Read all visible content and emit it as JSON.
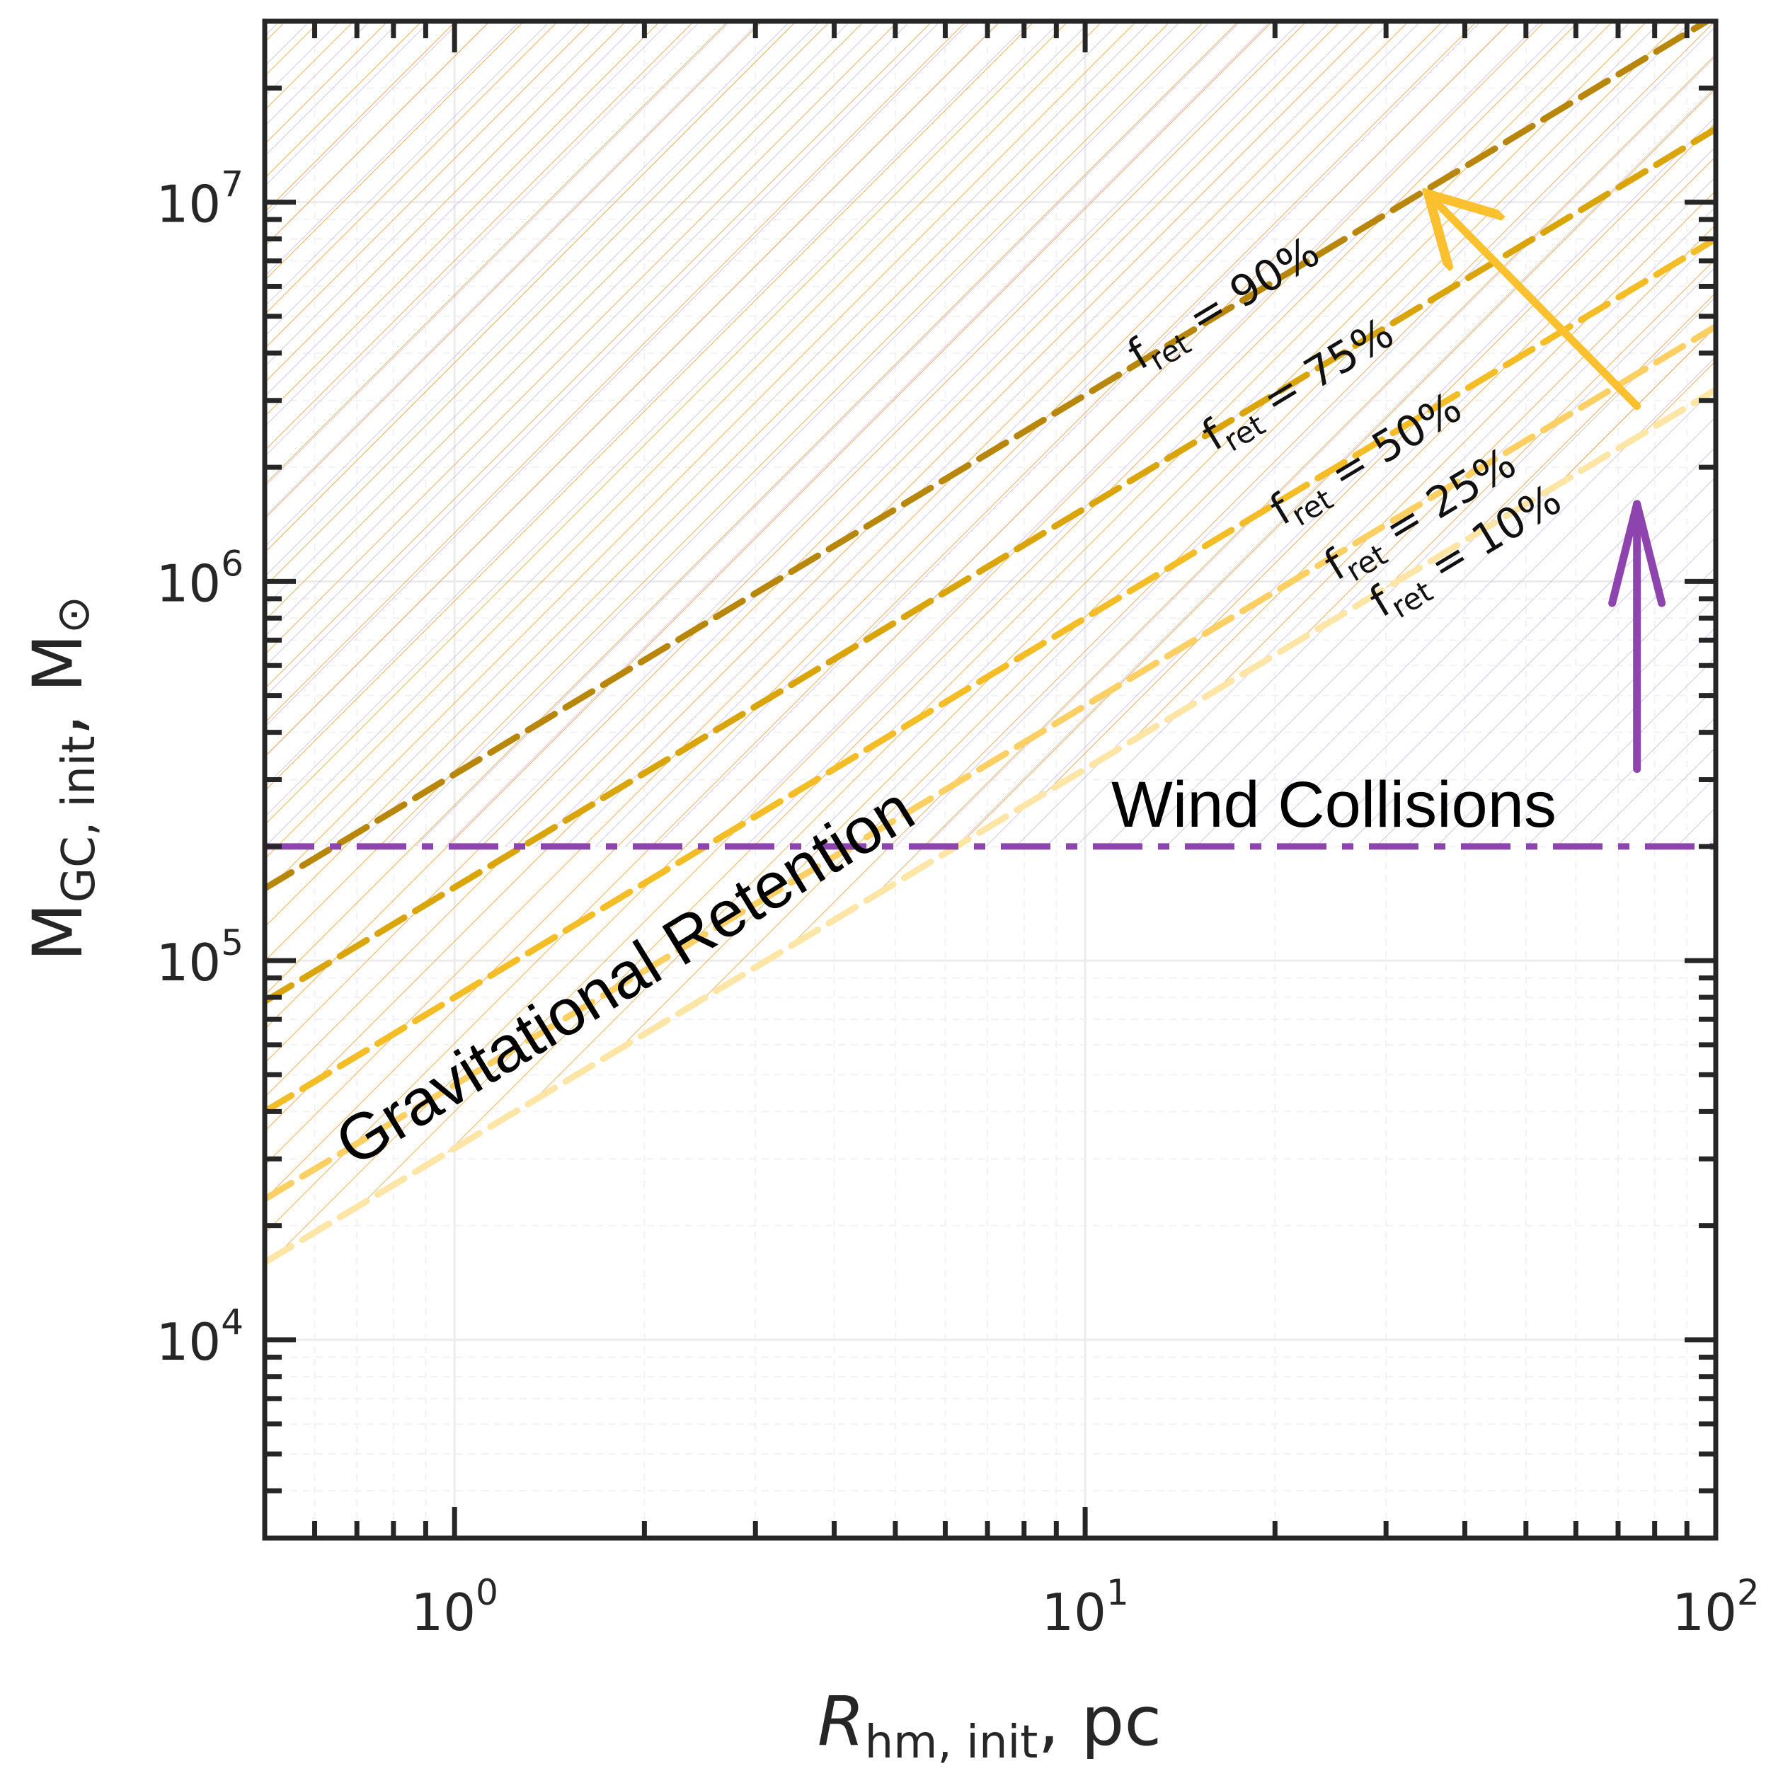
{
  "chart_data": {
    "type": "line",
    "xscale": "log",
    "yscale": "log",
    "xlim": [
      0.5,
      100
    ],
    "ylim": [
      3000,
      30000000
    ],
    "xlabel": {
      "main": "R",
      "sub": "hm, init",
      "suffix": ", pc"
    },
    "ylabel": {
      "main": "M",
      "sub": "GC, init",
      "suffix": ", M",
      "symbol": "⊙"
    },
    "x_ticks": [
      {
        "value": 1,
        "base": "10",
        "exp": "0"
      },
      {
        "value": 10,
        "base": "10",
        "exp": "1"
      },
      {
        "value": 100,
        "base": "10",
        "exp": "2"
      }
    ],
    "y_ticks": [
      {
        "value": 10000,
        "base": "10",
        "exp": "4"
      },
      {
        "value": 100000,
        "base": "10",
        "exp": "5"
      },
      {
        "value": 1000000,
        "base": "10",
        "exp": "6"
      },
      {
        "value": 10000000,
        "base": "10",
        "exp": "7"
      }
    ],
    "series": [
      {
        "name": "f_ret = 90%",
        "label_main": "f",
        "label_sub": "ret",
        "label_rest": " = 90%",
        "color": "#b8860b",
        "slope": 1,
        "points": [
          [
            0.5,
            155000
          ],
          [
            100,
            31000000
          ]
        ],
        "label_x": 12.2,
        "label_at": 3600000
      },
      {
        "name": "f_ret = 75%",
        "label_main": "f",
        "label_sub": "ret",
        "label_rest": " = 75%",
        "color": "#daa50b",
        "slope": 1,
        "points": [
          [
            0.5,
            78000
          ],
          [
            100,
            15600000
          ]
        ],
        "label_x": 16.0,
        "label_at": 2200000
      },
      {
        "name": "f_ret = 50%",
        "label_main": "f",
        "label_sub": "ret",
        "label_rest": " = 50%",
        "color": "#f5bd25",
        "slope": 1,
        "points": [
          [
            0.5,
            40000
          ],
          [
            100,
            8000000
          ]
        ],
        "label_x": 20.5,
        "label_at": 1400000
      },
      {
        "name": "f_ret = 25%",
        "label_main": "f",
        "label_sub": "ret",
        "label_rest": " = 25%",
        "color": "#fbcf62",
        "slope": 1,
        "points": [
          [
            0.5,
            23500
          ],
          [
            100,
            4700000
          ]
        ],
        "label_x": 25.0,
        "label_at": 1000000
      },
      {
        "name": "f_ret = 10%",
        "label_main": "f",
        "label_sub": "ret",
        "label_rest": " = 10%",
        "color": "#fde5a6",
        "slope": 1,
        "points": [
          [
            0.5,
            16000
          ],
          [
            100,
            3200000
          ]
        ],
        "label_x": 29.5,
        "label_at": 800000
      }
    ],
    "wind_threshold": {
      "value": 200000,
      "color": "#8e44ad"
    },
    "annotations": {
      "gravitational_label": "Gravitational Retention",
      "wind_label": "Wind Collisions"
    },
    "arrows": {
      "gravitational": {
        "from": [
          75,
          2900000
        ],
        "to": [
          35,
          10500000
        ],
        "color": "#fbc02d"
      },
      "wind": {
        "from": [
          75,
          320000
        ],
        "to": [
          75,
          1600000
        ],
        "color": "#8e44ad"
      }
    },
    "hatch": {
      "gold": "#e8a33a",
      "purple": "#b9a2e0"
    },
    "grid": true
  }
}
